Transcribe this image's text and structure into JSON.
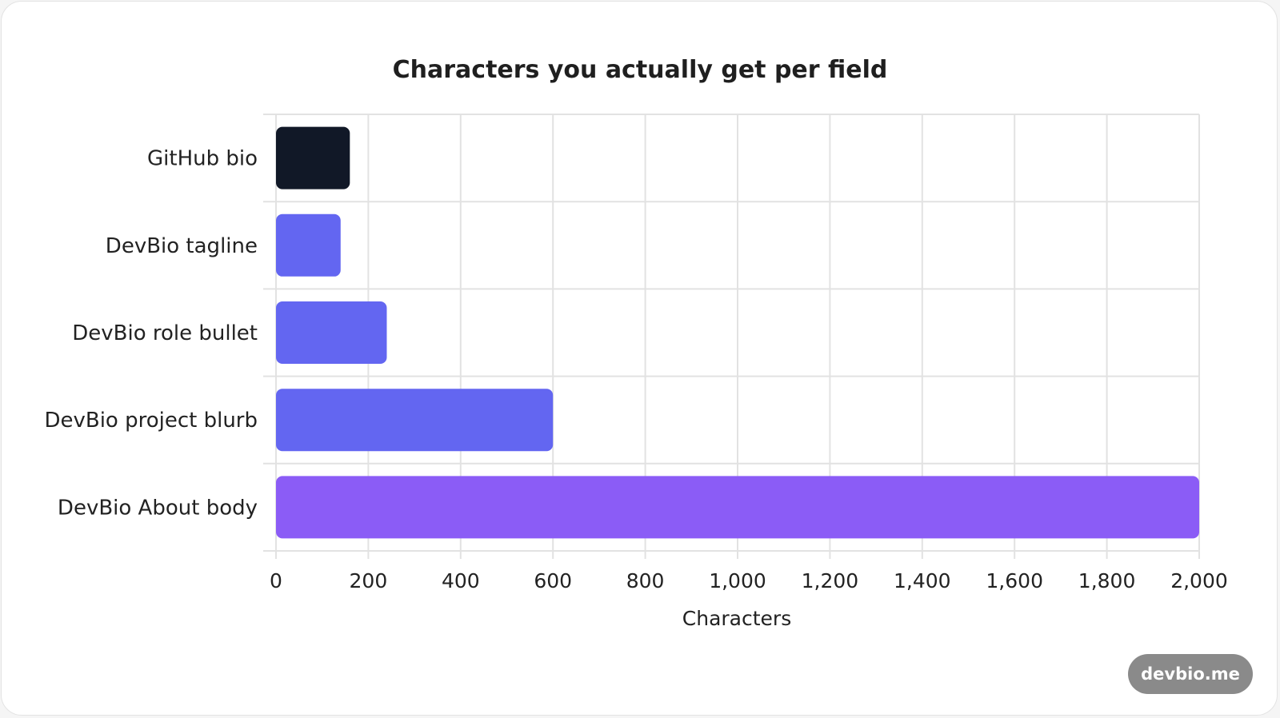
{
  "chart_data": {
    "type": "bar",
    "orientation": "horizontal",
    "title": "Characters you actually get per field",
    "xlabel": "Characters",
    "ylabel": "",
    "categories": [
      "GitHub bio",
      "DevBio tagline",
      "DevBio role bullet",
      "DevBio project blurb",
      "DevBio About body"
    ],
    "values": [
      160,
      140,
      240,
      600,
      2000
    ],
    "xlim": [
      0,
      2000
    ],
    "ticks": [
      "0",
      "200",
      "400",
      "600",
      "800",
      "1,000",
      "1,200",
      "1,400",
      "1,600",
      "1,800",
      "2,000"
    ],
    "tick_values": [
      0,
      200,
      400,
      600,
      800,
      1000,
      1200,
      1400,
      1600,
      1800,
      2000
    ],
    "grid": true,
    "colors": [
      "#111827",
      "#6366f1",
      "#6366f1",
      "#6366f1",
      "#8b5cf6"
    ]
  },
  "watermark": "devbio.me"
}
